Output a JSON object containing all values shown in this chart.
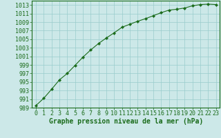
{
  "x": [
    0,
    1,
    2,
    3,
    4,
    5,
    6,
    7,
    8,
    9,
    10,
    11,
    12,
    13,
    14,
    15,
    16,
    17,
    18,
    19,
    20,
    21,
    22,
    23
  ],
  "y": [
    989.5,
    991.2,
    993.3,
    995.5,
    997.0,
    998.9,
    1000.8,
    1002.5,
    1004.0,
    1005.3,
    1006.5,
    1007.8,
    1008.5,
    1009.2,
    1009.8,
    1010.5,
    1011.2,
    1011.8,
    1012.0,
    1012.3,
    1012.8,
    1013.1,
    1013.2,
    1013.1
  ],
  "ylim": [
    989,
    1014
  ],
  "xlim": [
    -0.5,
    23.5
  ],
  "yticks": [
    989,
    991,
    993,
    995,
    997,
    999,
    1001,
    1003,
    1005,
    1007,
    1009,
    1011,
    1013
  ],
  "xticks": [
    0,
    1,
    2,
    3,
    4,
    5,
    6,
    7,
    8,
    9,
    10,
    11,
    12,
    13,
    14,
    15,
    16,
    17,
    18,
    19,
    20,
    21,
    22,
    23
  ],
  "line_color": "#1a6b1a",
  "marker_color": "#1a6b1a",
  "bg_plot": "#cce8e8",
  "bg_fig": "#cce8e8",
  "grid_color": "#99cccc",
  "xlabel": "Graphe pression niveau de la mer (hPa)",
  "xlabel_fontsize": 7,
  "tick_fontsize": 6,
  "label_color": "#1a6b1a"
}
